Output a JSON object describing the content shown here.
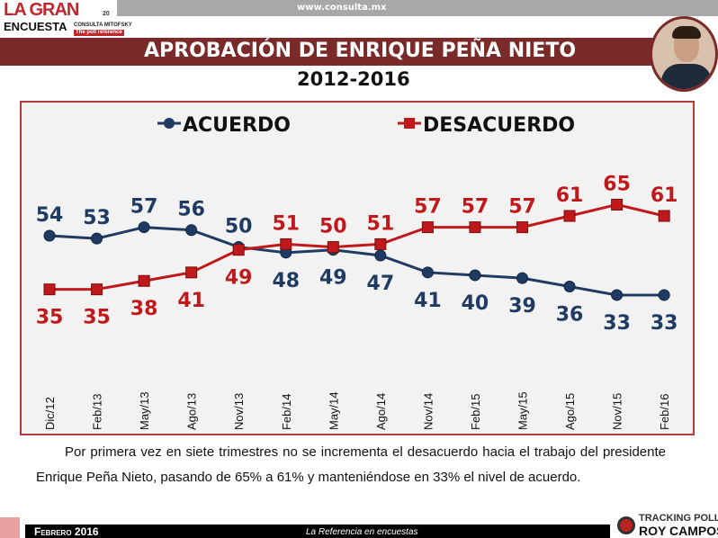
{
  "header": {
    "url": "www.consulta.mx",
    "logo_text": [
      "LA GRAN",
      "ENCUESTA",
      "CONSULTA MITOFSKY",
      "The poll reference",
      "20"
    ]
  },
  "title": "APROBACIÓN DE ENRIQUE PEÑA NIETO",
  "subtitle": "2012-2016",
  "chart_data": {
    "type": "line",
    "categories": [
      "Dic/12",
      "Feb/13",
      "May/13",
      "Ago/13",
      "Nov/13",
      "Feb/14",
      "May/14",
      "Ago/14",
      "Nov/14",
      "Feb/15",
      "May/15",
      "Ago/15",
      "Nov/15",
      "Feb/16"
    ],
    "series": [
      {
        "name": "ACUERDO",
        "color": "#1f3b63",
        "marker": "circle",
        "values": [
          54,
          53,
          57,
          56,
          50,
          48,
          49,
          47,
          41,
          40,
          39,
          36,
          33,
          33
        ]
      },
      {
        "name": "DESACUERDO",
        "color": "#c0191b",
        "marker": "square",
        "values": [
          35,
          35,
          38,
          41,
          49,
          51,
          50,
          51,
          57,
          57,
          57,
          61,
          65,
          61
        ]
      }
    ],
    "legend": "top",
    "grid": false,
    "ylim": [
      25,
      72
    ]
  },
  "paragraph": "Por primera vez en siete trimestres no se incrementa el desacuerdo hacia el trabajo del presidente Enrique Peña Nieto, pasando de 65% a 61% y manteniéndose en 33% el nivel de acuerdo.",
  "footer": {
    "date": "Febrero 2016",
    "tagline": "La Referencia en encuestas",
    "brand1": "TRACKING POLL",
    "brand2": "ROY CAMPOS"
  }
}
